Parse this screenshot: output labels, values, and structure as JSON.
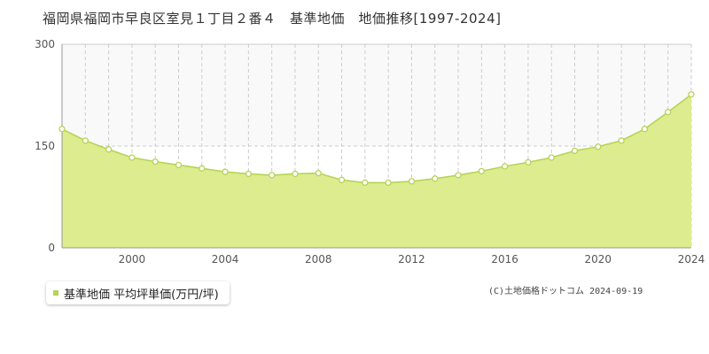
{
  "title": "福岡県福岡市早良区室見１丁目２番４　基準地価　地価推移[1997-2024]",
  "legend": {
    "label": "基準地価 平均坪単価(万円/坪)"
  },
  "copyright": "(C)土地価格ドットコム 2024-09-19",
  "colors": {
    "fill": "#dcec8e",
    "line": "#b5d455",
    "marker_fill": "#ffffff",
    "marker_stroke": "#b5d455",
    "legend_marker": "#b5d455",
    "grid_dashed": "#cccccc",
    "band": "#f9f9f9",
    "axis": "#999999"
  },
  "chart_data": {
    "type": "area",
    "x": [
      1997,
      1998,
      1999,
      2000,
      2001,
      2002,
      2003,
      2004,
      2005,
      2006,
      2007,
      2008,
      2009,
      2010,
      2011,
      2012,
      2013,
      2014,
      2015,
      2016,
      2017,
      2018,
      2019,
      2020,
      2021,
      2022,
      2023,
      2024
    ],
    "series": [
      {
        "name": "基準地価 平均坪単価(万円/坪)",
        "values": [
          175,
          158,
          145,
          133,
          127,
          122,
          117,
          112,
          109,
          107,
          109,
          110,
          100,
          96,
          96,
          98,
          102,
          107,
          113,
          120,
          126,
          133,
          143,
          149,
          158,
          175,
          200,
          226
        ]
      }
    ],
    "x_ticks": [
      "2000",
      "2004",
      "2008",
      "2012",
      "2016",
      "2020",
      "2024"
    ],
    "y_ticks": [
      "0",
      "150",
      "300"
    ],
    "xlim": [
      1997,
      2024
    ],
    "ylim": [
      0,
      300
    ],
    "grid": true
  }
}
